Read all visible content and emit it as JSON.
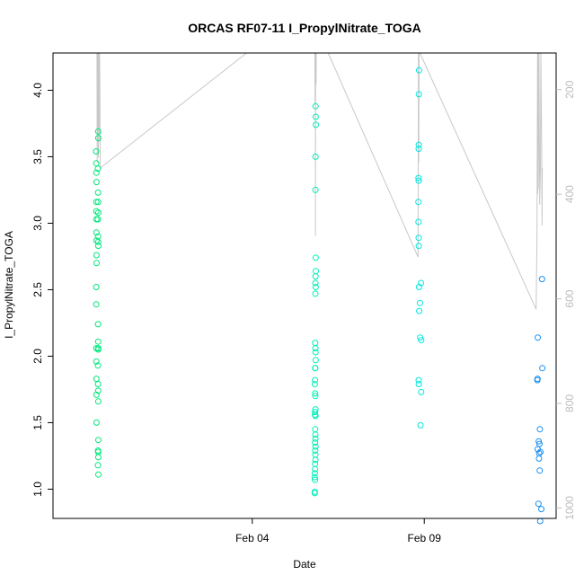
{
  "chart_data": {
    "type": "scatter",
    "title": "ORCAS RF07-11 I_PropylNitrate_TOGA",
    "xlabel": "Date",
    "ylabel": "I_PropylNitrate_TOGA",
    "x_ticks": [
      "Feb 04",
      "Feb 09"
    ],
    "y_ticks": [
      "1.0",
      "1.5",
      "2.0",
      "2.5",
      "3.0",
      "3.5",
      "4.0"
    ],
    "y2_ticks": [
      "200",
      "400",
      "600",
      "800",
      "1000"
    ],
    "y2_inverted": true,
    "ylim": [
      0.78,
      4.28
    ],
    "y2lim": [
      130,
      1020
    ],
    "xlim": [
      "2016-01-29T05:00",
      "2016-02-12T20:00"
    ],
    "grid": false,
    "legend": "none",
    "colors": {
      "RF07": "#00e87a",
      "RF08": "#00f0b8",
      "RF09": "#00e8e0",
      "RF11": "#1a8ff0",
      "secondary_line": "#c8c8c8"
    },
    "series": [
      {
        "flight": "RF07",
        "color": "#00e87a",
        "points": [
          [
            "2016-01-30T11:05",
            3.54
          ],
          [
            "2016-01-30T11:10",
            3.45
          ],
          [
            "2016-01-30T11:15",
            3.38
          ],
          [
            "2016-01-30T11:20",
            3.31
          ],
          [
            "2016-01-30T11:12",
            3.16
          ],
          [
            "2016-01-30T11:14",
            3.09
          ],
          [
            "2016-01-30T11:16",
            3.03
          ],
          [
            "2016-01-30T11:18",
            2.93
          ],
          [
            "2016-01-30T11:20",
            2.87
          ],
          [
            "2016-01-30T11:22",
            2.76
          ],
          [
            "2016-01-30T11:24",
            2.7
          ],
          [
            "2016-01-30T11:10",
            2.52
          ],
          [
            "2016-01-30T11:08",
            2.39
          ],
          [
            "2016-01-30T11:12",
            2.06
          ],
          [
            "2016-01-30T11:14",
            1.96
          ],
          [
            "2016-01-30T11:16",
            1.83
          ],
          [
            "2016-01-30T11:18",
            1.71
          ],
          [
            "2016-01-30T11:20",
            1.5
          ],
          [
            "2016-01-30T12:30",
            3.69
          ],
          [
            "2016-01-30T12:35",
            3.64
          ],
          [
            "2016-01-30T12:20",
            3.41
          ],
          [
            "2016-01-30T12:25",
            3.23
          ],
          [
            "2016-01-30T12:30",
            3.16
          ],
          [
            "2016-01-30T12:35",
            3.08
          ],
          [
            "2016-01-30T12:20",
            3.03
          ],
          [
            "2016-01-30T12:25",
            2.9
          ],
          [
            "2016-01-30T12:30",
            2.86
          ],
          [
            "2016-01-30T12:35",
            2.83
          ],
          [
            "2016-01-30T12:25",
            2.24
          ],
          [
            "2016-01-30T12:30",
            2.11
          ],
          [
            "2016-01-30T12:35",
            2.06
          ],
          [
            "2016-01-30T12:30",
            2.05
          ],
          [
            "2016-01-30T12:20",
            1.93
          ],
          [
            "2016-01-30T12:25",
            1.79
          ],
          [
            "2016-01-30T12:30",
            1.74
          ],
          [
            "2016-01-30T12:35",
            1.66
          ],
          [
            "2016-01-30T12:40",
            1.37
          ],
          [
            "2016-01-30T12:25",
            1.29
          ],
          [
            "2016-01-30T12:30",
            1.28
          ],
          [
            "2016-01-30T12:35",
            1.24
          ],
          [
            "2016-01-30T12:20",
            1.18
          ],
          [
            "2016-01-30T12:40",
            1.11
          ]
        ]
      },
      {
        "flight": "RF08",
        "color": "#00f0b8",
        "points": [
          [
            "2016-02-05T20:10",
            3.88
          ],
          [
            "2016-02-05T20:15",
            3.8
          ],
          [
            "2016-02-05T20:20",
            3.74
          ],
          [
            "2016-02-05T20:10",
            3.5
          ],
          [
            "2016-02-05T20:05",
            3.25
          ],
          [
            "2016-02-05T20:15",
            2.74
          ],
          [
            "2016-02-05T20:20",
            2.64
          ],
          [
            "2016-02-05T20:10",
            2.6
          ],
          [
            "2016-02-05T20:05",
            2.55
          ],
          [
            "2016-02-05T20:15",
            2.52
          ],
          [
            "2016-02-05T20:00",
            2.47
          ],
          [
            "2016-02-05T19:55",
            2.1
          ],
          [
            "2016-02-05T20:05",
            2.06
          ],
          [
            "2016-02-05T20:10",
            2.03
          ],
          [
            "2016-02-05T20:15",
            1.97
          ],
          [
            "2016-02-05T19:50",
            1.91
          ],
          [
            "2016-02-05T20:00",
            1.91
          ],
          [
            "2016-02-05T19:45",
            1.82
          ],
          [
            "2016-02-05T19:40",
            1.79
          ],
          [
            "2016-02-05T19:55",
            1.72
          ],
          [
            "2016-02-05T20:00",
            1.7
          ],
          [
            "2016-02-05T20:05",
            1.6
          ],
          [
            "2016-02-05T19:50",
            1.58
          ],
          [
            "2016-02-05T19:45",
            1.56
          ],
          [
            "2016-02-05T20:10",
            1.55
          ],
          [
            "2016-02-05T19:55",
            1.45
          ],
          [
            "2016-02-05T20:00",
            1.41
          ],
          [
            "2016-02-05T20:05",
            1.38
          ],
          [
            "2016-02-05T19:50",
            1.35
          ],
          [
            "2016-02-05T20:10",
            1.32
          ],
          [
            "2016-02-05T19:55",
            1.29
          ],
          [
            "2016-02-05T20:00",
            1.26
          ],
          [
            "2016-02-05T20:05",
            1.22
          ],
          [
            "2016-02-05T19:45",
            1.19
          ],
          [
            "2016-02-05T19:50",
            1.15
          ],
          [
            "2016-02-05T19:40",
            1.12
          ],
          [
            "2016-02-05T19:35",
            1.09
          ],
          [
            "2016-02-05T19:45",
            1.07
          ],
          [
            "2016-02-05T19:40",
            0.98
          ],
          [
            "2016-02-05T19:35",
            0.97
          ]
        ]
      },
      {
        "flight": "RF09",
        "color": "#00e8e0",
        "points": [
          [
            "2016-02-08T20:20",
            4.15
          ],
          [
            "2016-02-08T20:15",
            3.97
          ],
          [
            "2016-02-08T20:10",
            3.59
          ],
          [
            "2016-02-08T20:05",
            3.56
          ],
          [
            "2016-02-08T20:00",
            3.34
          ],
          [
            "2016-02-08T20:05",
            3.32
          ],
          [
            "2016-02-08T19:55",
            3.16
          ],
          [
            "2016-02-08T20:00",
            3.01
          ],
          [
            "2016-02-08T20:05",
            2.89
          ],
          [
            "2016-02-08T20:10",
            2.83
          ],
          [
            "2016-02-08T21:40",
            2.55
          ],
          [
            "2016-02-08T20:20",
            2.52
          ],
          [
            "2016-02-08T21:00",
            2.4
          ],
          [
            "2016-02-08T20:30",
            2.34
          ],
          [
            "2016-02-08T21:10",
            2.14
          ],
          [
            "2016-02-08T21:50",
            2.12
          ],
          [
            "2016-02-08T20:05",
            1.82
          ],
          [
            "2016-02-08T20:10",
            1.79
          ],
          [
            "2016-02-08T21:50",
            1.73
          ],
          [
            "2016-02-08T21:20",
            1.48
          ]
        ]
      },
      {
        "flight": "RF11",
        "color": "#1a8ff0",
        "points": [
          [
            "2016-02-12T10:10",
            2.58
          ],
          [
            "2016-02-12T07:10",
            2.14
          ],
          [
            "2016-02-12T07:00",
            1.83
          ],
          [
            "2016-02-12T06:55",
            1.82
          ],
          [
            "2016-02-12T10:20",
            1.91
          ],
          [
            "2016-02-12T08:40",
            1.45
          ],
          [
            "2016-02-12T07:50",
            1.36
          ],
          [
            "2016-02-12T08:20",
            1.34
          ],
          [
            "2016-02-12T07:10",
            1.3
          ],
          [
            "2016-02-12T09:00",
            1.28
          ],
          [
            "2016-02-12T08:10",
            1.27
          ],
          [
            "2016-02-12T08:00",
            1.23
          ],
          [
            "2016-02-12T08:30",
            1.14
          ],
          [
            "2016-02-12T07:40",
            0.89
          ],
          [
            "2016-02-12T09:40",
            0.85
          ],
          [
            "2016-02-12T08:50",
            0.76
          ]
        ]
      }
    ],
    "secondary_line": [
      [
        "2016-01-30T11:40",
        130
      ],
      [
        "2016-01-30T11:50",
        340
      ],
      [
        "2016-01-30T12:00",
        280
      ],
      [
        "2016-01-30T12:10",
        130
      ],
      [
        "2016-01-30T12:20",
        250
      ],
      [
        "2016-01-30T12:30",
        130
      ],
      [
        "2016-01-30T12:40",
        330
      ],
      [
        "2016-01-30T12:50",
        130
      ],
      [
        "2016-01-30T13:00",
        300
      ],
      [
        "2016-01-30T13:30",
        130
      ],
      [
        "2016-01-30T14:00",
        350
      ],
      [
        "2016-02-03T20:00",
        130
      ],
      [
        "2016-02-05T19:40",
        130
      ],
      [
        "2016-02-05T19:50",
        230
      ],
      [
        "2016-02-05T20:00",
        130
      ],
      [
        "2016-02-05T20:05",
        480
      ],
      [
        "2016-02-05T20:10",
        210
      ],
      [
        "2016-02-05T20:20",
        130
      ],
      [
        "2016-02-05T20:30",
        190
      ],
      [
        "2016-02-05T20:40",
        130
      ],
      [
        "2016-02-06T05:00",
        130
      ],
      [
        "2016-02-08T19:40",
        520
      ],
      [
        "2016-02-08T19:55",
        130
      ],
      [
        "2016-02-08T20:10",
        340
      ],
      [
        "2016-02-08T20:20",
        130
      ],
      [
        "2016-02-08T21:00",
        130
      ],
      [
        "2016-02-12T06:00",
        620
      ],
      [
        "2016-02-12T06:40",
        480
      ],
      [
        "2016-02-12T07:00",
        130
      ],
      [
        "2016-02-12T07:10",
        400
      ],
      [
        "2016-02-12T07:20",
        130
      ],
      [
        "2016-02-12T07:30",
        390
      ],
      [
        "2016-02-12T08:00",
        130
      ],
      [
        "2016-02-12T08:30",
        420
      ],
      [
        "2016-02-12T09:00",
        350
      ],
      [
        "2016-02-12T09:20",
        130
      ],
      [
        "2016-02-12T10:00",
        330
      ],
      [
        "2016-02-12T10:10",
        460
      ],
      [
        "2016-02-12T10:20",
        350
      ]
    ]
  }
}
